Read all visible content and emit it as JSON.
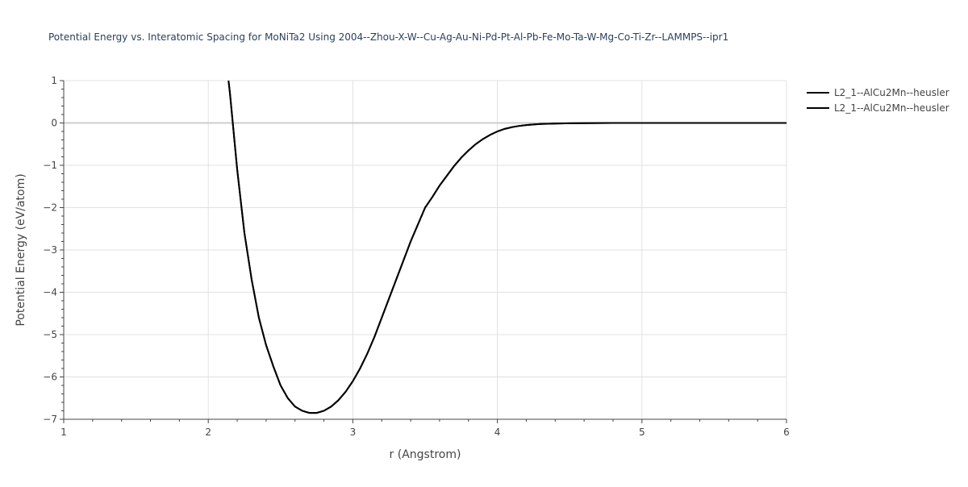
{
  "chart_data": {
    "type": "line",
    "title": "Potential Energy vs. Interatomic Spacing for MoNiTa2 Using 2004--Zhou-X-W--Cu-Ag-Au-Ni-Pd-Pt-Al-Pb-Fe-Mo-Ta-W-Mg-Co-Ti-Zr--LAMMPS--ipr1",
    "xlabel": "r (Angstrom)",
    "ylabel": "Potential Energy (eV/atom)",
    "xlim": [
      1,
      6
    ],
    "ylim": [
      -7,
      1
    ],
    "x_ticks": [
      1,
      2,
      3,
      4,
      5,
      6
    ],
    "x_tick_labels": [
      "1",
      "2",
      "3",
      "4",
      "5",
      "6"
    ],
    "y_ticks": [
      1,
      0,
      -1,
      -2,
      -3,
      -4,
      -5,
      -6,
      -7
    ],
    "y_tick_labels": [
      "1",
      "0",
      "−1",
      "−2",
      "−3",
      "−4",
      "−5",
      "−6",
      "−7"
    ],
    "grid": true,
    "legend_position": "top-right",
    "colors": {
      "line": "#000000",
      "grid": "#e0e0e0",
      "zero_line": "#cccccc",
      "text": "#444444",
      "title": "#2a3f5f"
    },
    "series": [
      {
        "name": "L2_1--AlCu2Mn--heusler",
        "x": [
          2.14,
          2.15,
          2.2,
          2.25,
          2.3,
          2.35,
          2.4,
          2.45,
          2.5,
          2.55,
          2.6,
          2.65,
          2.7,
          2.75,
          2.8,
          2.85,
          2.9,
          2.95,
          3.0,
          3.05,
          3.1,
          3.15,
          3.2,
          3.25,
          3.3,
          3.35,
          3.4,
          3.45,
          3.5,
          3.55,
          3.6,
          3.65,
          3.7,
          3.75,
          3.8,
          3.85,
          3.9,
          3.95,
          4.0,
          4.05,
          4.1,
          4.15,
          4.2,
          4.25,
          4.3,
          4.4,
          4.5,
          4.6,
          4.7,
          4.8,
          4.9,
          5.0,
          5.2,
          5.5,
          5.8,
          6.0
        ],
        "y": [
          1.0,
          0.7,
          -1.1,
          -2.6,
          -3.7,
          -4.6,
          -5.25,
          -5.75,
          -6.2,
          -6.5,
          -6.7,
          -6.8,
          -6.85,
          -6.85,
          -6.8,
          -6.7,
          -6.55,
          -6.35,
          -6.1,
          -5.8,
          -5.45,
          -5.05,
          -4.6,
          -4.15,
          -3.7,
          -3.25,
          -2.8,
          -2.4,
          -2.0,
          -1.75,
          -1.48,
          -1.25,
          -1.02,
          -0.82,
          -0.65,
          -0.5,
          -0.38,
          -0.28,
          -0.2,
          -0.14,
          -0.1,
          -0.07,
          -0.05,
          -0.035,
          -0.025,
          -0.015,
          -0.008,
          -0.004,
          -0.002,
          -0.001,
          0.0,
          0.0,
          0.0,
          0.0,
          0.0,
          0.0
        ]
      },
      {
        "name": "L2_1--AlCu2Mn--heusler",
        "x": [
          2.14,
          2.15,
          2.2,
          2.25,
          2.3,
          2.35,
          2.4,
          2.45,
          2.5,
          2.55,
          2.6,
          2.65,
          2.7,
          2.75,
          2.8,
          2.85,
          2.9,
          2.95,
          3.0,
          3.05,
          3.1,
          3.15,
          3.2,
          3.25,
          3.3,
          3.35,
          3.4,
          3.45,
          3.5,
          3.55,
          3.6,
          3.65,
          3.7,
          3.75,
          3.8,
          3.85,
          3.9,
          3.95,
          4.0,
          4.05,
          4.1,
          4.15,
          4.2,
          4.25,
          4.3,
          4.4,
          4.5,
          4.6,
          4.7,
          4.8,
          4.9,
          5.0,
          5.2,
          5.5,
          5.8,
          6.0
        ],
        "y": [
          1.0,
          0.7,
          -1.1,
          -2.6,
          -3.7,
          -4.6,
          -5.25,
          -5.75,
          -6.2,
          -6.5,
          -6.7,
          -6.8,
          -6.85,
          -6.85,
          -6.8,
          -6.7,
          -6.55,
          -6.35,
          -6.1,
          -5.8,
          -5.45,
          -5.05,
          -4.6,
          -4.15,
          -3.7,
          -3.25,
          -2.8,
          -2.4,
          -2.0,
          -1.75,
          -1.48,
          -1.25,
          -1.02,
          -0.82,
          -0.65,
          -0.5,
          -0.38,
          -0.28,
          -0.2,
          -0.14,
          -0.1,
          -0.07,
          -0.05,
          -0.035,
          -0.025,
          -0.015,
          -0.008,
          -0.004,
          -0.002,
          -0.001,
          0.0,
          0.0,
          0.0,
          0.0,
          0.0,
          0.0
        ]
      }
    ]
  }
}
